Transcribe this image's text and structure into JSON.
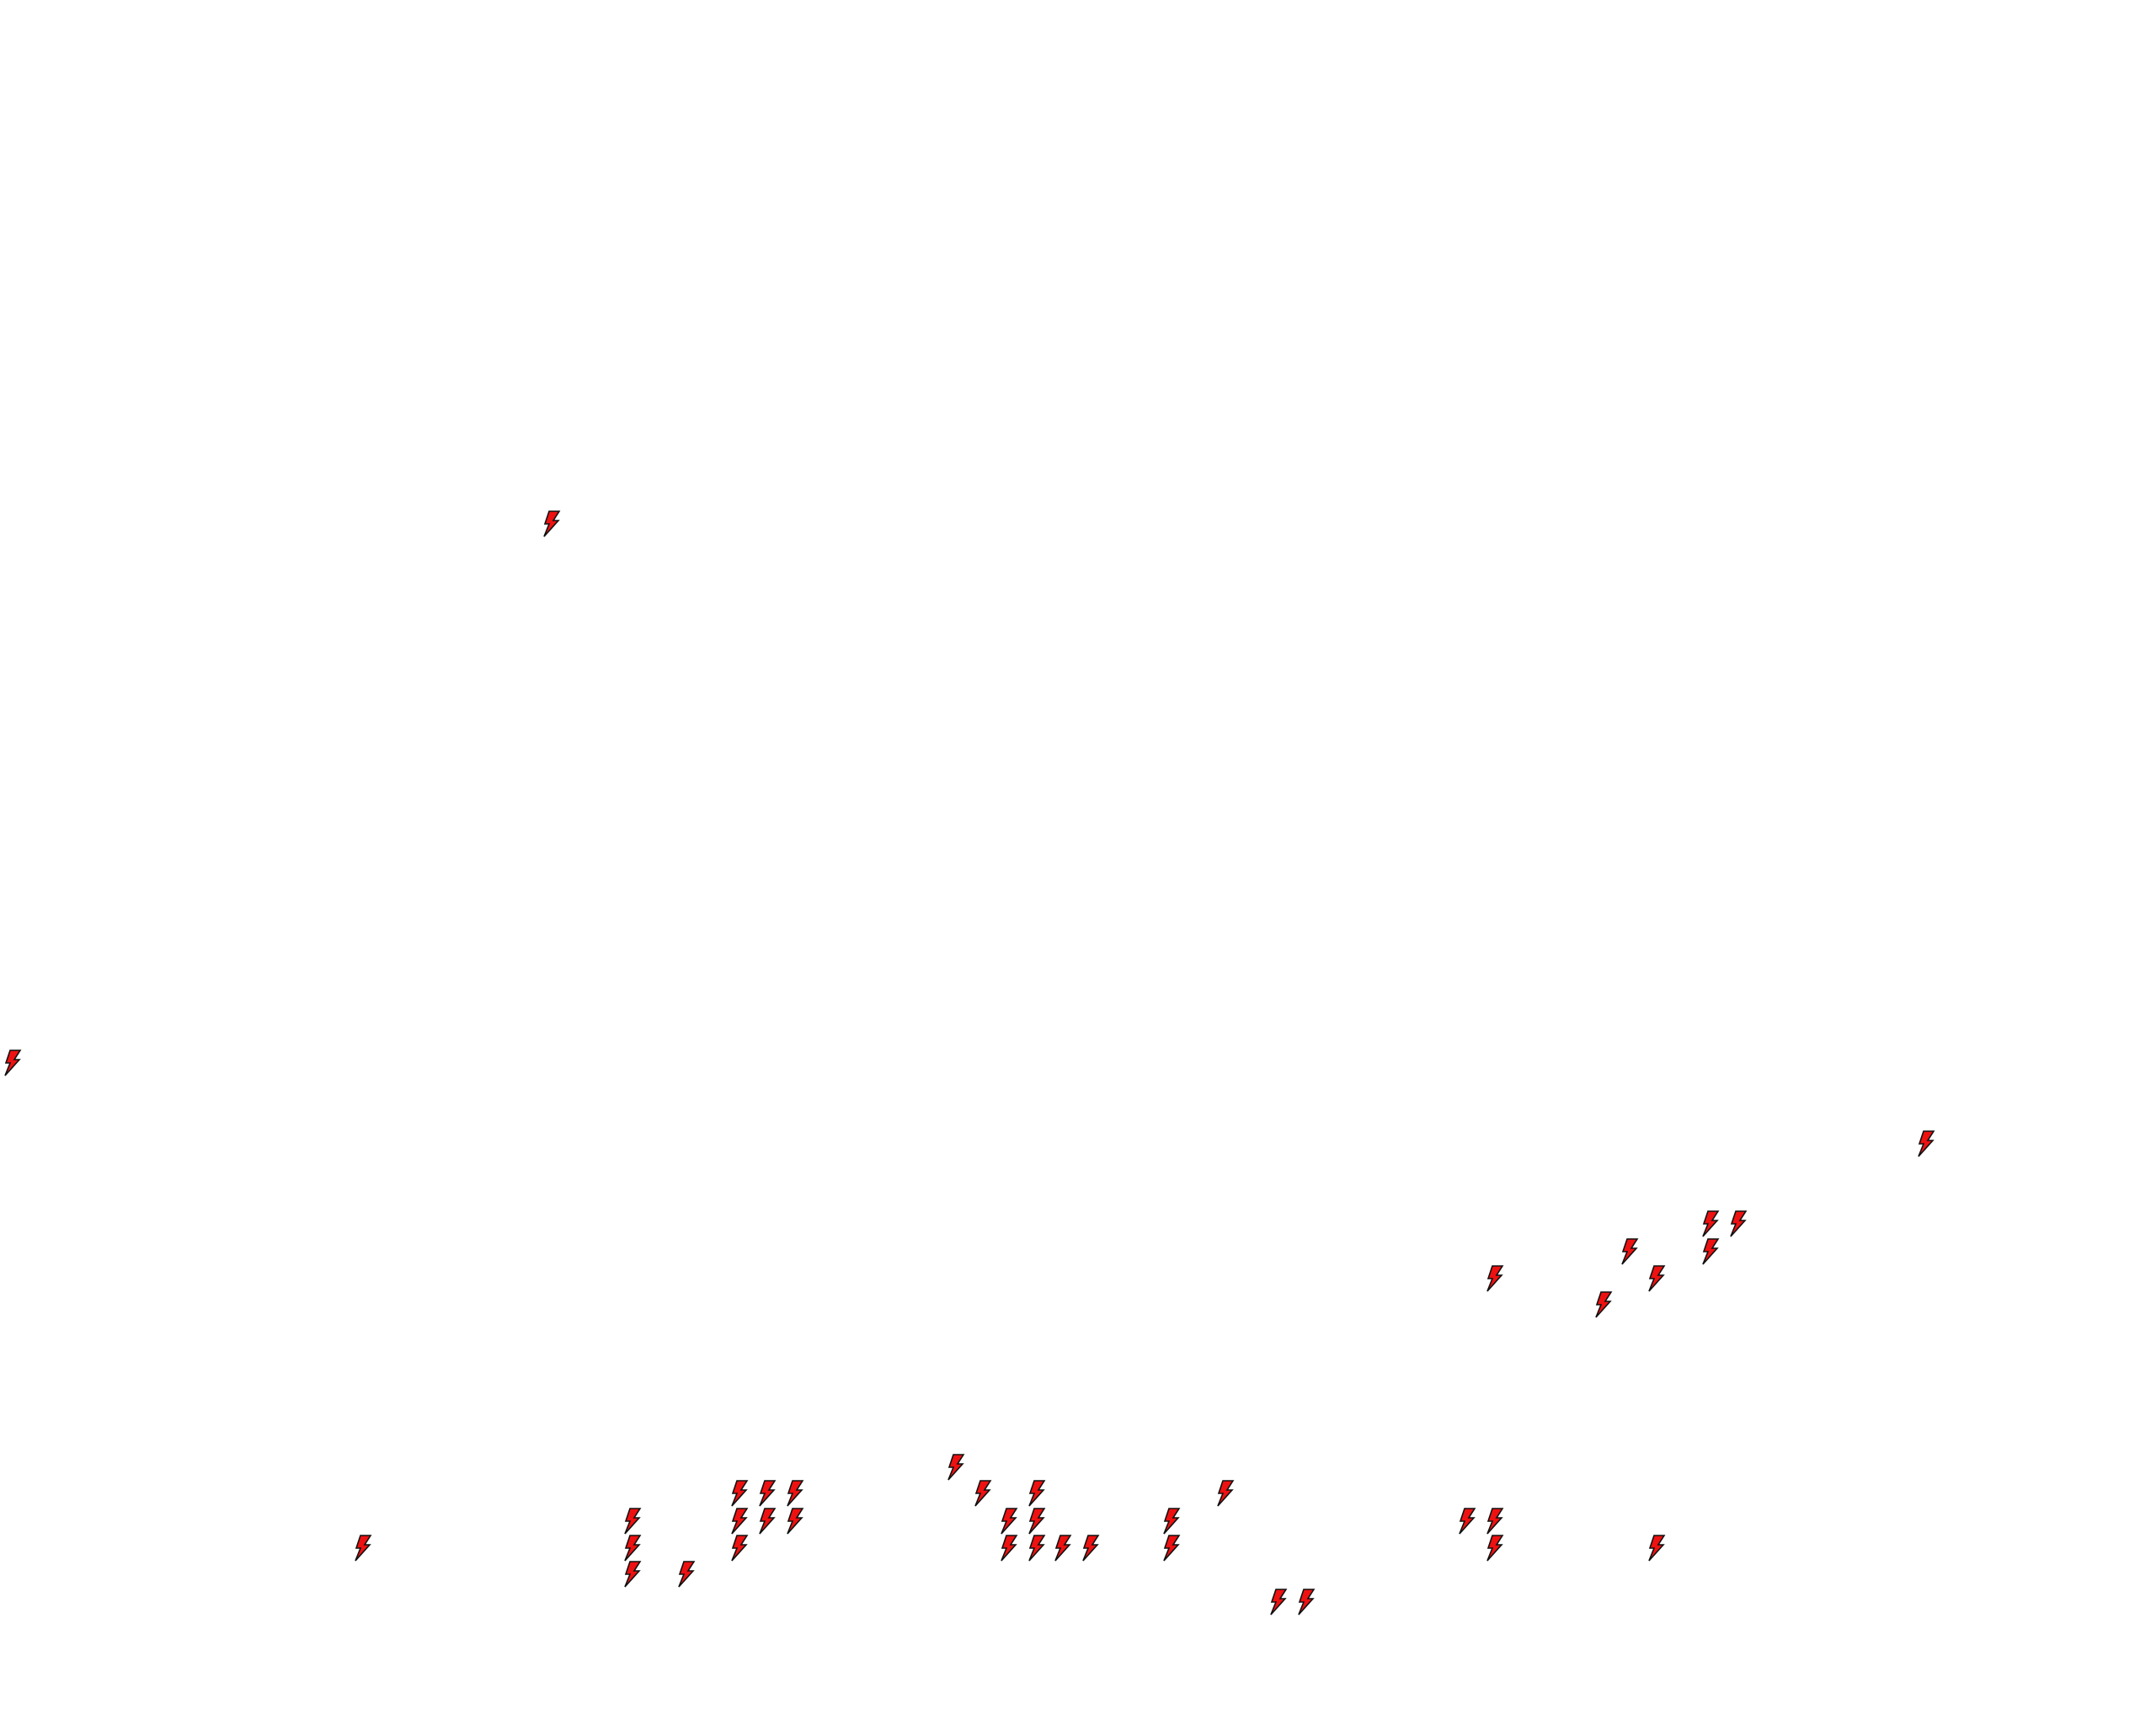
{
  "map": {
    "background": "#ffffff",
    "marker_icon": "lightning-bolt-icon",
    "marker_fill": "#ee1111",
    "marker_stroke": "#111111",
    "marker_count": 40
  }
}
